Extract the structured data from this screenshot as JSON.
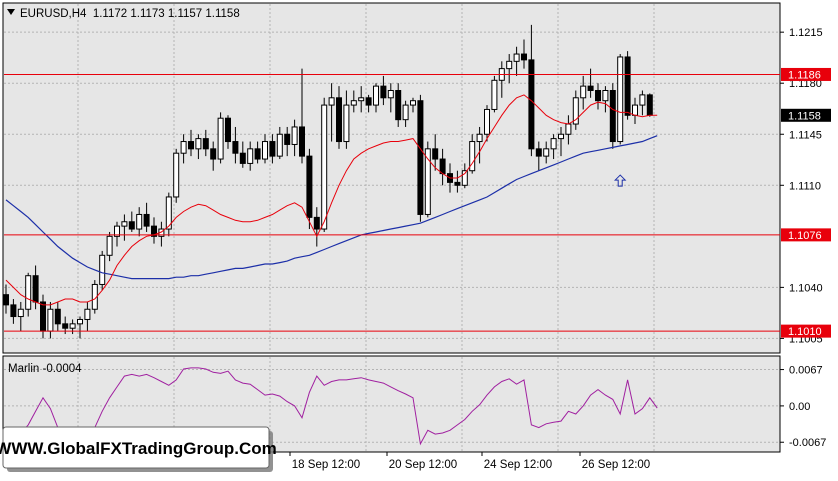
{
  "header": {
    "symbol_line": "EURUSD,H4  1.1172 1.1173 1.1157 1.1158"
  },
  "price_axis": {
    "ticks": [
      "1.1215",
      "1.1180",
      "1.1145",
      "1.1110",
      "1.1040",
      "1.1005"
    ],
    "levels": [
      {
        "label": "1.1186",
        "value": 1.1186,
        "color": "#e8000b"
      },
      {
        "label": "1.1076",
        "value": 1.1076,
        "color": "#e8000b"
      },
      {
        "label": "1.1010",
        "value": 1.101,
        "color": "#e8000b"
      }
    ],
    "current": {
      "label": "1.1158",
      "value": 1.1158
    }
  },
  "indicator": {
    "label": "Marlin -0.0004",
    "ticks": [
      "0.0067",
      "0.00",
      "-0.0067"
    ],
    "color": "#a020a0"
  },
  "time_axis": {
    "labels": [
      "18 Sep 12:00",
      "20 Sep 12:00",
      "24 Sep 12:00",
      "26 Sep 12:00"
    ]
  },
  "watermark": "WWW.GlobalFXTradingGroup.Com",
  "colors": {
    "bull_candle": "#ffffff",
    "bear_candle": "#000000",
    "fast_ma": "#e8000b",
    "slow_ma": "#1c2fa8",
    "arrow": "#1c2fa8",
    "background": "#e6e6e6"
  },
  "chart_data": {
    "type": "candlestick",
    "symbol": "EURUSD",
    "timeframe": "H4",
    "ylim": [
      1.0995,
      1.1235
    ],
    "ohlc": [
      [
        1.1035,
        1.1042,
        1.1022,
        1.1028
      ],
      [
        1.1028,
        1.1032,
        1.1015,
        1.102
      ],
      [
        1.102,
        1.103,
        1.101,
        1.1025
      ],
      [
        1.1025,
        1.105,
        1.102,
        1.1048
      ],
      [
        1.1048,
        1.1055,
        1.1025,
        1.103
      ],
      [
        1.103,
        1.1035,
        1.1005,
        1.101
      ],
      [
        1.101,
        1.103,
        1.1005,
        1.1025
      ],
      [
        1.1025,
        1.103,
        1.101,
        1.1015
      ],
      [
        1.1015,
        1.102,
        1.1008,
        1.1012
      ],
      [
        1.1012,
        1.1018,
        1.1008,
        1.1015
      ],
      [
        1.1015,
        1.102,
        1.1005,
        1.1018
      ],
      [
        1.1018,
        1.103,
        1.101,
        1.1025
      ],
      [
        1.1025,
        1.1045,
        1.1022,
        1.1042
      ],
      [
        1.1042,
        1.1065,
        1.1038,
        1.1062
      ],
      [
        1.1062,
        1.1078,
        1.1058,
        1.1075
      ],
      [
        1.1075,
        1.1085,
        1.1068,
        1.1082
      ],
      [
        1.1082,
        1.109,
        1.1072,
        1.1085
      ],
      [
        1.1085,
        1.1092,
        1.1078,
        1.108
      ],
      [
        1.108,
        1.1095,
        1.1075,
        1.109
      ],
      [
        1.109,
        1.1098,
        1.1078,
        1.1082
      ],
      [
        1.1082,
        1.1088,
        1.107,
        1.1075
      ],
      [
        1.1075,
        1.1085,
        1.1068,
        1.108
      ],
      [
        1.108,
        1.1105,
        1.1075,
        1.1102
      ],
      [
        1.1102,
        1.1135,
        1.1098,
        1.1132
      ],
      [
        1.1132,
        1.1145,
        1.1125,
        1.114
      ],
      [
        1.114,
        1.1148,
        1.113,
        1.1135
      ],
      [
        1.1135,
        1.1145,
        1.1128,
        1.1142
      ],
      [
        1.1142,
        1.1148,
        1.113,
        1.1135
      ],
      [
        1.1135,
        1.114,
        1.112,
        1.1128
      ],
      [
        1.1128,
        1.116,
        1.1125,
        1.1156
      ],
      [
        1.1156,
        1.1158,
        1.1135,
        1.114
      ],
      [
        1.114,
        1.115,
        1.1125,
        1.1132
      ],
      [
        1.1132,
        1.114,
        1.1122,
        1.1125
      ],
      [
        1.1125,
        1.114,
        1.112,
        1.1135
      ],
      [
        1.1135,
        1.114,
        1.1125,
        1.1128
      ],
      [
        1.1128,
        1.1145,
        1.1125,
        1.114
      ],
      [
        1.114,
        1.1145,
        1.1125,
        1.113
      ],
      [
        1.113,
        1.115,
        1.1128,
        1.1145
      ],
      [
        1.1145,
        1.115,
        1.113,
        1.1138
      ],
      [
        1.1138,
        1.1155,
        1.113,
        1.115
      ],
      [
        1.115,
        1.119,
        1.1125,
        1.113
      ],
      [
        1.113,
        1.1135,
        1.108,
        1.1088
      ],
      [
        1.1088,
        1.1095,
        1.1068,
        1.108
      ],
      [
        1.108,
        1.117,
        1.1078,
        1.1165
      ],
      [
        1.1165,
        1.118,
        1.114,
        1.117
      ],
      [
        1.117,
        1.1178,
        1.1135,
        1.114
      ],
      [
        1.114,
        1.1175,
        1.1135,
        1.1165
      ],
      [
        1.1165,
        1.1175,
        1.116,
        1.1168
      ],
      [
        1.1168,
        1.1178,
        1.116,
        1.117
      ],
      [
        1.117,
        1.1172,
        1.116,
        1.1165
      ],
      [
        1.1165,
        1.118,
        1.116,
        1.1178
      ],
      [
        1.1178,
        1.1185,
        1.1165,
        1.117
      ],
      [
        1.117,
        1.118,
        1.116,
        1.1175
      ],
      [
        1.1175,
        1.118,
        1.115,
        1.1155
      ],
      [
        1.1155,
        1.1168,
        1.115,
        1.1165
      ],
      [
        1.1165,
        1.117,
        1.116,
        1.1168
      ],
      [
        1.1168,
        1.1172,
        1.1085,
        1.109
      ],
      [
        1.109,
        1.114,
        1.1088,
        1.1135
      ],
      [
        1.1135,
        1.1145,
        1.112,
        1.1128
      ],
      [
        1.1128,
        1.1135,
        1.111,
        1.1118
      ],
      [
        1.1118,
        1.1125,
        1.1105,
        1.1112
      ],
      [
        1.1112,
        1.112,
        1.1105,
        1.111
      ],
      [
        1.111,
        1.1125,
        1.1108,
        1.112
      ],
      [
        1.112,
        1.1145,
        1.1118,
        1.114
      ],
      [
        1.114,
        1.115,
        1.1125,
        1.1145
      ],
      [
        1.1145,
        1.1165,
        1.114,
        1.1162
      ],
      [
        1.1162,
        1.1185,
        1.116,
        1.1182
      ],
      [
        1.1182,
        1.1195,
        1.117,
        1.119
      ],
      [
        1.119,
        1.12,
        1.118,
        1.1195
      ],
      [
        1.1195,
        1.1205,
        1.1185,
        1.12
      ],
      [
        1.12,
        1.121,
        1.119,
        1.1196
      ],
      [
        1.1196,
        1.122,
        1.113,
        1.1135
      ],
      [
        1.1135,
        1.114,
        1.112,
        1.113
      ],
      [
        1.113,
        1.114,
        1.1125,
        1.1135
      ],
      [
        1.1135,
        1.1145,
        1.1128,
        1.1142
      ],
      [
        1.1142,
        1.115,
        1.113,
        1.1145
      ],
      [
        1.1145,
        1.1158,
        1.1138,
        1.1152
      ],
      [
        1.1152,
        1.1175,
        1.1148,
        1.117
      ],
      [
        1.117,
        1.1185,
        1.1162,
        1.1178
      ],
      [
        1.1178,
        1.119,
        1.117,
        1.1175
      ],
      [
        1.1175,
        1.118,
        1.1162,
        1.1168
      ],
      [
        1.1168,
        1.1178,
        1.116,
        1.1175
      ],
      [
        1.1175,
        1.118,
        1.1135,
        1.114
      ],
      [
        1.114,
        1.12,
        1.1138,
        1.1198
      ],
      [
        1.1198,
        1.1202,
        1.1155,
        1.1158
      ],
      [
        1.1158,
        1.117,
        1.1152,
        1.1165
      ],
      [
        1.1165,
        1.1175,
        1.1158,
        1.1172
      ],
      [
        1.1172,
        1.1173,
        1.1157,
        1.1158
      ]
    ],
    "fast_ma": [
      1.1045,
      1.104,
      1.1035,
      1.1032,
      1.103,
      1.1028,
      1.1028,
      1.103,
      1.1032,
      1.1032,
      1.103,
      1.103,
      1.1032,
      1.1038,
      1.1045,
      1.1055,
      1.1062,
      1.1068,
      1.1072,
      1.1075,
      1.1076,
      1.1078,
      1.1082,
      1.1088,
      1.1092,
      1.1095,
      1.1097,
      1.1096,
      1.1093,
      1.109,
      1.1088,
      1.1086,
      1.1085,
      1.1085,
      1.1086,
      1.1088,
      1.109,
      1.1093,
      1.1096,
      1.1098,
      1.1095,
      1.1085,
      1.1075,
      1.1085,
      1.1098,
      1.111,
      1.112,
      1.1128,
      1.1132,
      1.1135,
      1.1137,
      1.1139,
      1.114,
      1.114,
      1.1141,
      1.1142,
      1.1135,
      1.1128,
      1.1122,
      1.1118,
      1.1115,
      1.1115,
      1.1118,
      1.1125,
      1.1133,
      1.1142,
      1.115,
      1.1158,
      1.1165,
      1.117,
      1.1172,
      1.1168,
      1.1163,
      1.1158,
      1.1155,
      1.1153,
      1.1152,
      1.1155,
      1.116,
      1.1165,
      1.1167,
      1.1166,
      1.1162,
      1.116,
      1.116,
      1.1158,
      1.1157,
      1.1158,
      1.1158
    ],
    "slow_ma": [
      1.11,
      1.1096,
      1.1092,
      1.1088,
      1.1083,
      1.1078,
      1.1073,
      1.1068,
      1.1064,
      1.106,
      1.1057,
      1.1054,
      1.1052,
      1.105,
      1.1049,
      1.1048,
      1.1047,
      1.1046,
      1.1046,
      1.1046,
      1.1046,
      1.1046,
      1.1046,
      1.1047,
      1.1047,
      1.1048,
      1.1048,
      1.1049,
      1.105,
      1.1051,
      1.1052,
      1.1053,
      1.1053,
      1.1054,
      1.1055,
      1.1056,
      1.1056,
      1.1057,
      1.1058,
      1.106,
      1.1061,
      1.1062,
      1.1064,
      1.1066,
      1.1068,
      1.107,
      1.1072,
      1.1074,
      1.1076,
      1.1077,
      1.1078,
      1.1079,
      1.108,
      1.1081,
      1.1082,
      1.1083,
      1.1084,
      1.1086,
      1.1088,
      1.109,
      1.1092,
      1.1094,
      1.1096,
      1.1098,
      1.11,
      1.1102,
      1.1105,
      1.1108,
      1.1111,
      1.1114,
      1.1116,
      1.1118,
      1.112,
      1.1122,
      1.1124,
      1.1126,
      1.1128,
      1.113,
      1.1132,
      1.1133,
      1.1134,
      1.1135,
      1.1136,
      1.1137,
      1.1138,
      1.1139,
      1.114,
      1.1142,
      1.1144
    ],
    "indicator_ylim": [
      -0.0085,
      0.0092
    ],
    "indicator_values": [
      -0.0055,
      -0.006,
      -0.005,
      -0.0035,
      -0.001,
      0.0015,
      -0.0005,
      -0.004,
      -0.007,
      -0.0072,
      -0.006,
      -0.005,
      -0.004,
      -0.001,
      0.0015,
      0.0035,
      0.0055,
      0.0058,
      0.0055,
      0.0058,
      0.0052,
      0.0045,
      0.0038,
      0.0048,
      0.0068,
      0.007,
      0.007,
      0.0068,
      0.0062,
      0.006,
      0.0064,
      0.0048,
      0.0042,
      0.004,
      0.003,
      0.002,
      0.0022,
      0.0018,
      0.0008,
      0.0,
      -0.0022,
      0.0025,
      0.0055,
      0.0038,
      0.0045,
      0.0048,
      0.0048,
      0.005,
      0.0052,
      0.0048,
      0.0045,
      0.0042,
      0.0035,
      0.0028,
      0.0022,
      0.0015,
      -0.007,
      -0.0045,
      -0.0052,
      -0.005,
      -0.0045,
      -0.0035,
      -0.0025,
      -0.001,
      0.0002,
      0.002,
      0.0035,
      0.0045,
      0.005,
      0.004,
      0.0048,
      -0.0035,
      -0.004,
      -0.0033,
      -0.003,
      -0.0028,
      -0.001,
      -0.0015,
      0.0,
      0.002,
      0.003,
      0.002,
      0.0012,
      -0.0015,
      0.0048,
      -0.0015,
      -0.0005,
      0.0015,
      -0.0004
    ],
    "arrow_at_index": 83
  }
}
